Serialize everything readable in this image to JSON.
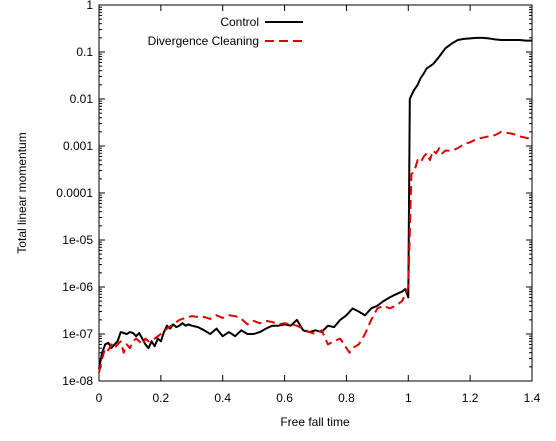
{
  "chart_data": {
    "type": "line",
    "title": "",
    "xlabel": "Free fall time",
    "ylabel": "Total linear momentum",
    "xlim": [
      0,
      1.4
    ],
    "ylim": [
      1e-08,
      1
    ],
    "yscale": "log",
    "x_ticks": [
      "0",
      "0.2",
      "0.4",
      "0.6",
      "0.8",
      "1",
      "1.2",
      "1.4"
    ],
    "y_ticks": [
      "1e-08",
      "1e-07",
      "1e-06",
      "1e-05",
      "0.0001",
      "0.001",
      "0.01",
      "0.1",
      "1"
    ],
    "grid": false,
    "legend_position": "top-left",
    "series": [
      {
        "name": "Control",
        "color": "#000000",
        "style": "solid",
        "x": [
          0.0,
          0.01,
          0.02,
          0.03,
          0.04,
          0.05,
          0.06,
          0.07,
          0.08,
          0.09,
          0.1,
          0.11,
          0.12,
          0.13,
          0.14,
          0.15,
          0.16,
          0.17,
          0.18,
          0.19,
          0.2,
          0.21,
          0.22,
          0.23,
          0.24,
          0.25,
          0.26,
          0.27,
          0.28,
          0.29,
          0.3,
          0.32,
          0.34,
          0.36,
          0.38,
          0.4,
          0.42,
          0.44,
          0.46,
          0.48,
          0.5,
          0.52,
          0.54,
          0.56,
          0.58,
          0.6,
          0.62,
          0.64,
          0.66,
          0.68,
          0.7,
          0.72,
          0.74,
          0.76,
          0.78,
          0.8,
          0.82,
          0.84,
          0.86,
          0.88,
          0.9,
          0.92,
          0.94,
          0.96,
          0.98,
          0.99,
          1.0,
          1.005,
          1.01,
          1.02,
          1.03,
          1.04,
          1.05,
          1.06,
          1.08,
          1.1,
          1.12,
          1.14,
          1.16,
          1.18,
          1.2,
          1.22,
          1.24,
          1.26,
          1.28,
          1.3,
          1.32,
          1.34,
          1.36,
          1.38,
          1.4
        ],
        "values": [
          1.8e-08,
          4e-08,
          6e-08,
          6.5e-08,
          5e-08,
          6e-08,
          7e-08,
          1.1e-07,
          1.05e-07,
          1e-07,
          1.1e-07,
          1.05e-07,
          9e-08,
          1.05e-07,
          8e-08,
          6e-08,
          5e-08,
          7e-08,
          5.5e-08,
          8e-08,
          7e-08,
          1.1e-07,
          1.5e-07,
          1.3e-07,
          1.6e-07,
          1.4e-07,
          1.5e-07,
          1.7e-07,
          1.5e-07,
          1.6e-07,
          1.5e-07,
          1.4e-07,
          1.2e-07,
          1e-07,
          1.3e-07,
          9e-08,
          1.1e-07,
          9e-08,
          1.2e-07,
          1e-07,
          1e-07,
          1.1e-07,
          1.3e-07,
          1.5e-07,
          1.5e-07,
          1.6e-07,
          1.5e-07,
          2e-07,
          1.2e-07,
          1.1e-07,
          1.2e-07,
          1.1e-07,
          1.5e-07,
          1.4e-07,
          2e-07,
          2.5e-07,
          3.5e-07,
          3e-07,
          2.5e-07,
          3.5e-07,
          4e-07,
          5e-07,
          6e-07,
          7e-07,
          8e-07,
          9e-07,
          6e-07,
          0.01,
          0.012,
          0.016,
          0.02,
          0.028,
          0.035,
          0.045,
          0.055,
          0.08,
          0.12,
          0.15,
          0.18,
          0.19,
          0.195,
          0.2,
          0.2,
          0.195,
          0.185,
          0.18,
          0.18,
          0.18,
          0.18,
          0.175,
          0.175
        ]
      },
      {
        "name": "Divergence Cleaning",
        "color": "#e00000",
        "style": "dashed",
        "x": [
          0.0,
          0.01,
          0.02,
          0.03,
          0.04,
          0.05,
          0.06,
          0.07,
          0.08,
          0.09,
          0.1,
          0.11,
          0.12,
          0.13,
          0.14,
          0.15,
          0.16,
          0.18,
          0.2,
          0.22,
          0.24,
          0.26,
          0.28,
          0.3,
          0.32,
          0.34,
          0.36,
          0.38,
          0.4,
          0.42,
          0.44,
          0.46,
          0.48,
          0.5,
          0.52,
          0.54,
          0.56,
          0.58,
          0.6,
          0.62,
          0.64,
          0.66,
          0.68,
          0.7,
          0.72,
          0.74,
          0.76,
          0.78,
          0.8,
          0.81,
          0.82,
          0.84,
          0.86,
          0.88,
          0.9,
          0.92,
          0.94,
          0.96,
          0.98,
          0.99,
          1.0,
          1.01,
          1.02,
          1.03,
          1.04,
          1.05,
          1.06,
          1.07,
          1.08,
          1.09,
          1.1,
          1.11,
          1.12,
          1.14,
          1.16,
          1.18,
          1.2,
          1.22,
          1.24,
          1.26,
          1.28,
          1.3,
          1.32,
          1.34,
          1.36,
          1.38,
          1.4
        ],
        "values": [
          1.5e-08,
          3e-08,
          5e-08,
          4.5e-08,
          6e-08,
          5e-08,
          6e-08,
          7e-08,
          4e-08,
          6e-08,
          5e-08,
          7e-08,
          8e-08,
          7e-08,
          6e-08,
          8e-08,
          7e-08,
          8e-08,
          1e-07,
          1.3e-07,
          1.6e-07,
          2e-07,
          2.2e-07,
          2.4e-07,
          2.3e-07,
          2.3e-07,
          2.1e-07,
          2.5e-07,
          2.2e-07,
          2.5e-07,
          2.4e-07,
          2.1e-07,
          1.6e-07,
          1.9e-07,
          1.7e-07,
          1.9e-07,
          1.8e-07,
          1.6e-07,
          1.7e-07,
          1.6e-07,
          1.5e-07,
          1.3e-07,
          1.1e-07,
          1e-07,
          1.2e-07,
          6e-08,
          7e-08,
          8e-08,
          5e-08,
          4e-08,
          5e-08,
          6e-08,
          1e-07,
          2e-07,
          3.5e-07,
          4e-07,
          3.5e-07,
          4e-07,
          5e-07,
          7e-07,
          1e-06,
          0.00025,
          0.0003,
          0.0005,
          0.00045,
          0.0006,
          0.0007,
          0.0005,
          0.0008,
          0.0007,
          0.0009,
          0.0007,
          0.0008,
          0.0008,
          0.0009,
          0.0011,
          0.0012,
          0.0014,
          0.0015,
          0.0016,
          0.0017,
          0.002,
          0.0019,
          0.0018,
          0.0016,
          0.0015,
          0.0014
        ]
      }
    ]
  }
}
